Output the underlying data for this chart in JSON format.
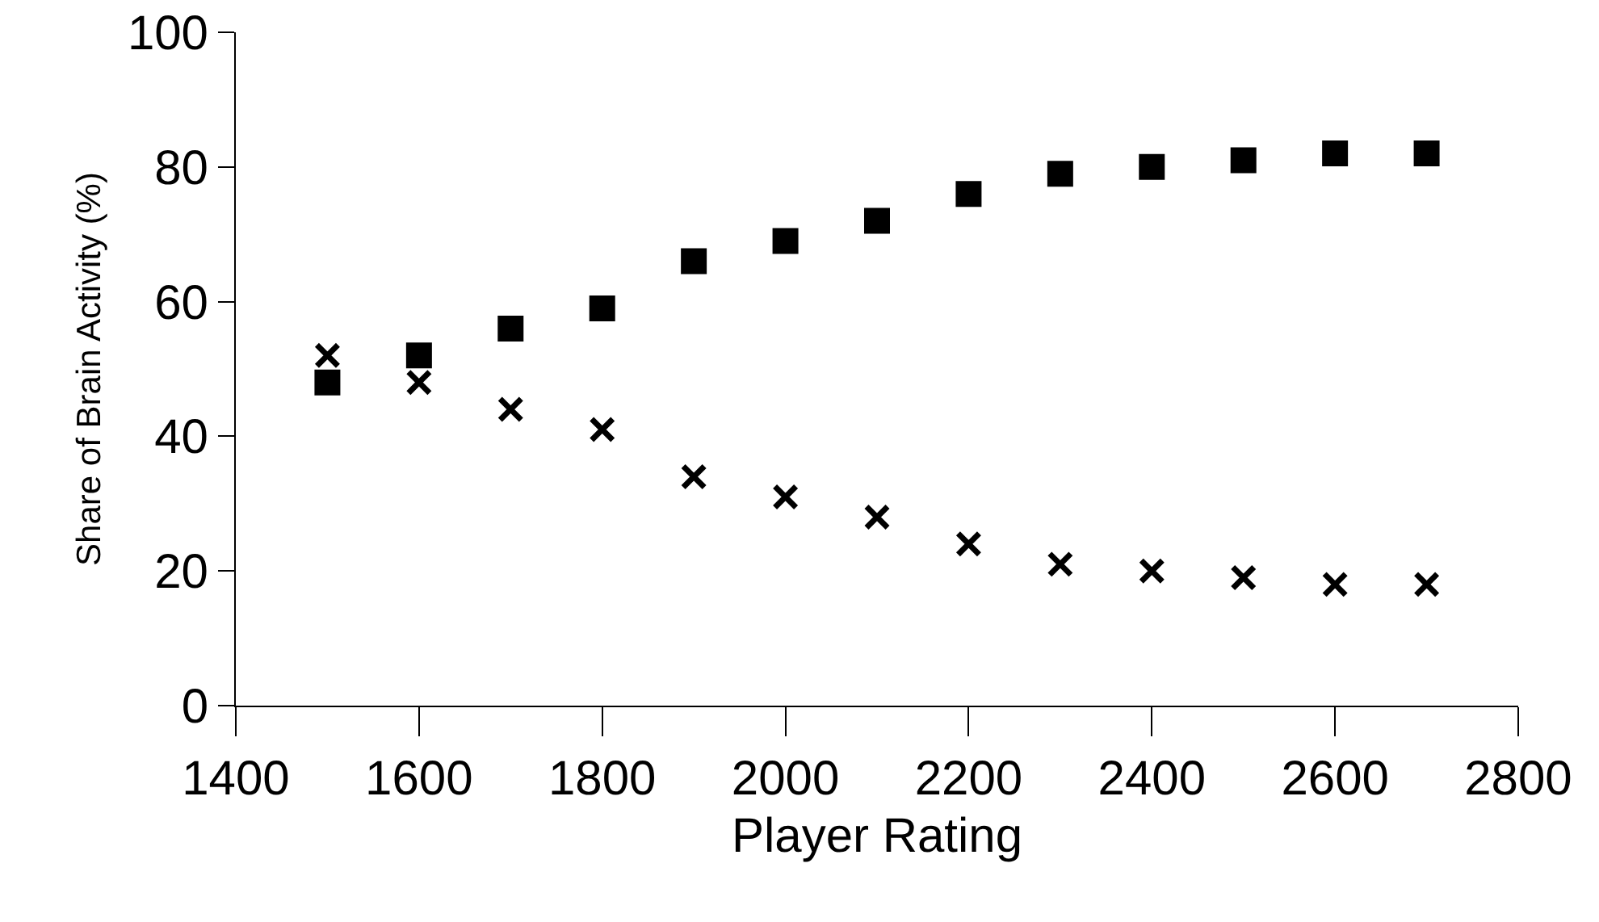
{
  "chart_data": {
    "type": "scatter",
    "xlabel": "Player Rating",
    "ylabel": "Share of Brain Activity (%)",
    "x": [
      1500,
      1600,
      1700,
      1800,
      1900,
      2000,
      2100,
      2200,
      2300,
      2400,
      2500,
      2600,
      2700
    ],
    "series": [
      {
        "color": "#000000",
        "marker": "square",
        "values": [
          48,
          52,
          56,
          59,
          66,
          69,
          72,
          76,
          79,
          80,
          81,
          82,
          82
        ]
      },
      {
        "color": "#000000",
        "marker": "cross",
        "values": [
          52,
          48,
          44,
          41,
          34,
          31,
          28,
          24,
          21,
          20,
          19,
          18,
          18
        ]
      }
    ],
    "xlim": [
      1400,
      2800
    ],
    "xticks": [
      1400,
      1600,
      1800,
      2000,
      2200,
      2400,
      2600,
      2800
    ],
    "ylim": [
      0,
      100
    ],
    "yticks": [
      0,
      20,
      40,
      60,
      80,
      100
    ],
    "grid": false
  }
}
